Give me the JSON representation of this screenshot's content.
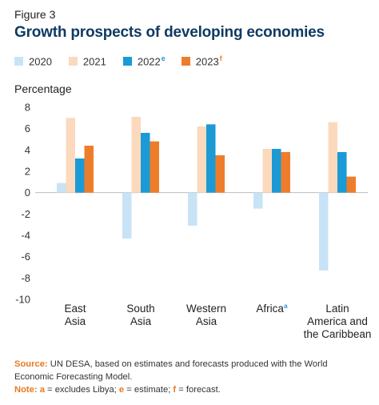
{
  "figure_label": "Figure 3",
  "chart_data": {
    "type": "bar",
    "title": "Growth prospects of developing economies",
    "ylabel": "Percentage",
    "xlabel": "",
    "ylim": [
      -10,
      8
    ],
    "yticks": [
      8,
      6,
      4,
      2,
      0,
      -2,
      -4,
      -6,
      -8,
      -10
    ],
    "legend_position": "top",
    "categories": [
      {
        "lines": [
          "East",
          "Asia"
        ],
        "sup": ""
      },
      {
        "lines": [
          "South",
          "Asia"
        ],
        "sup": ""
      },
      {
        "lines": [
          "Western",
          "Asia"
        ],
        "sup": ""
      },
      {
        "lines": [
          "Africa"
        ],
        "sup": "a"
      },
      {
        "lines": [
          "Latin",
          "America and",
          "the Caribbean"
        ],
        "sup": ""
      }
    ],
    "series": [
      {
        "name": "2020",
        "sup": "",
        "color": "#c9e3f6",
        "values": [
          0.9,
          -4.3,
          -3.1,
          -1.5,
          -7.3
        ]
      },
      {
        "name": "2021",
        "sup": "",
        "color": "#fbd9bd",
        "values": [
          7.0,
          7.1,
          6.2,
          4.1,
          6.6
        ]
      },
      {
        "name": "2022",
        "sup": "e",
        "color": "#1b9ad6",
        "values": [
          3.2,
          5.6,
          6.4,
          4.1,
          3.8
        ]
      },
      {
        "name": "2023",
        "sup": "f",
        "color": "#ee7d2b",
        "values": [
          4.4,
          4.8,
          3.5,
          3.8,
          1.5
        ]
      }
    ]
  },
  "notes": {
    "source_label": "Source:",
    "source_text": "UN DESA, based on estimates and forecasts produced with the World Economic Forecasting Model.",
    "note_label": "Note:",
    "note_a_key": "a",
    "note_a_text": "= excludes Libya;",
    "note_e_key": "e",
    "note_e_text": "= estimate;",
    "note_f_key": "f",
    "note_f_text": "= forecast."
  }
}
